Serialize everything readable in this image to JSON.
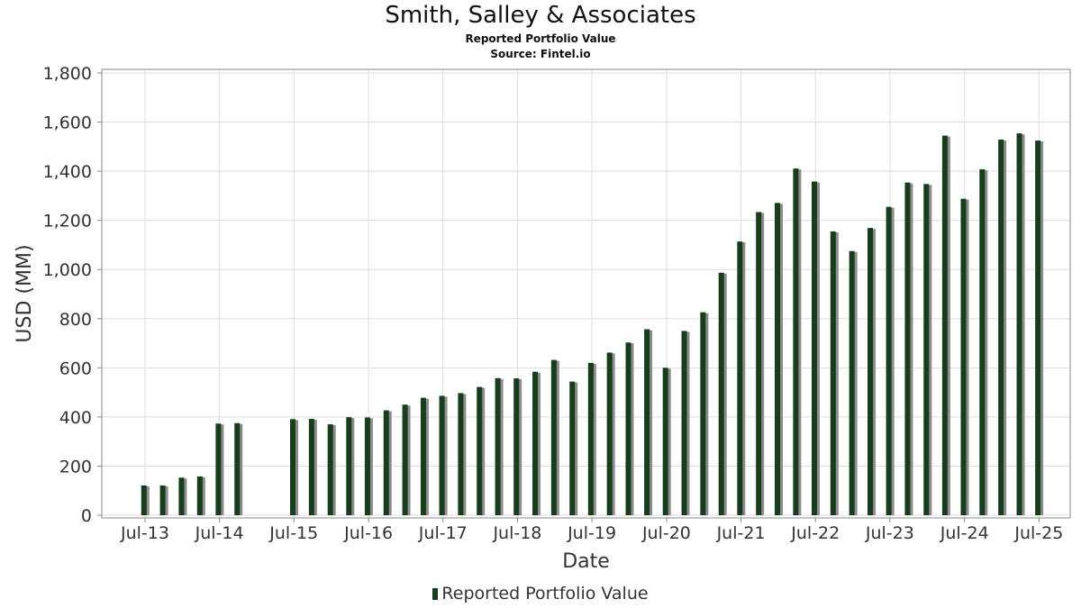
{
  "header": {
    "title": "Smith, Salley & Associates",
    "subtitle": "Reported Portfolio Value",
    "source": "Source: Fintel.io"
  },
  "legend": {
    "label": "Reported Portfolio Value"
  },
  "colors": {
    "bar": "#173d1d",
    "bar_shadow": "#8c8c8c",
    "grid": "#dddddd",
    "frame": "#888888"
  },
  "chart_data": {
    "type": "bar",
    "title": "Smith, Salley & Associates",
    "subtitle": "Reported Portfolio Value",
    "xlabel": "Date",
    "ylabel": "USD (MM)",
    "ylim": [
      0,
      1800
    ],
    "yticks": [
      0,
      200,
      400,
      600,
      800,
      1000,
      1200,
      1400,
      1600,
      1800
    ],
    "ytick_labels": [
      "0",
      "200",
      "400",
      "600",
      "800",
      "1,000",
      "1,200",
      "1,400",
      "1,600",
      "1,800"
    ],
    "xlim": [
      "2012-12-01",
      "2025-12-01"
    ],
    "xticks": [
      "2013-07-01",
      "2014-07-01",
      "2015-07-01",
      "2016-07-01",
      "2017-07-01",
      "2018-07-01",
      "2019-07-01",
      "2020-07-01",
      "2021-07-01",
      "2022-07-01",
      "2023-07-01",
      "2024-07-01",
      "2025-07-01"
    ],
    "xtick_labels": [
      "Jul-13",
      "Jul-14",
      "Jul-15",
      "Jul-16",
      "Jul-17",
      "Jul-18",
      "Jul-19",
      "Jul-20",
      "Jul-21",
      "Jul-22",
      "Jul-23",
      "Jul-24",
      "Jul-25"
    ],
    "grid": true,
    "legend_position": "bottom-center",
    "series": [
      {
        "name": "Reported Portfolio Value",
        "x": [
          "2013-06-30",
          "2013-09-30",
          "2013-12-31",
          "2014-03-31",
          "2014-06-30",
          "2014-09-30",
          "2015-06-30",
          "2015-09-30",
          "2015-12-31",
          "2016-03-31",
          "2016-06-30",
          "2016-09-30",
          "2016-12-31",
          "2017-03-31",
          "2017-06-30",
          "2017-09-30",
          "2017-12-31",
          "2018-03-31",
          "2018-06-30",
          "2018-09-30",
          "2018-12-31",
          "2019-03-31",
          "2019-06-30",
          "2019-09-30",
          "2019-12-31",
          "2020-03-31",
          "2020-06-30",
          "2020-09-30",
          "2020-12-31",
          "2021-03-31",
          "2021-06-30",
          "2021-09-30",
          "2021-12-31",
          "2022-03-31",
          "2022-06-30",
          "2022-09-30",
          "2022-12-31",
          "2023-03-31",
          "2023-06-30",
          "2023-09-30",
          "2023-12-31",
          "2024-03-31",
          "2024-06-30",
          "2024-09-30",
          "2024-12-31",
          "2025-03-31",
          "2025-06-30"
        ],
        "values": [
          121,
          121,
          153,
          158,
          373,
          375,
          391,
          392,
          370,
          399,
          398,
          427,
          450,
          478,
          486,
          497,
          522,
          558,
          557,
          584,
          632,
          544,
          620,
          662,
          703,
          757,
          600,
          750,
          826,
          987,
          1114,
          1234,
          1271,
          1411,
          1358,
          1155,
          1075,
          1169,
          1255,
          1354,
          1348,
          1545,
          1288,
          1408,
          1529,
          1554,
          1525
        ]
      }
    ]
  }
}
